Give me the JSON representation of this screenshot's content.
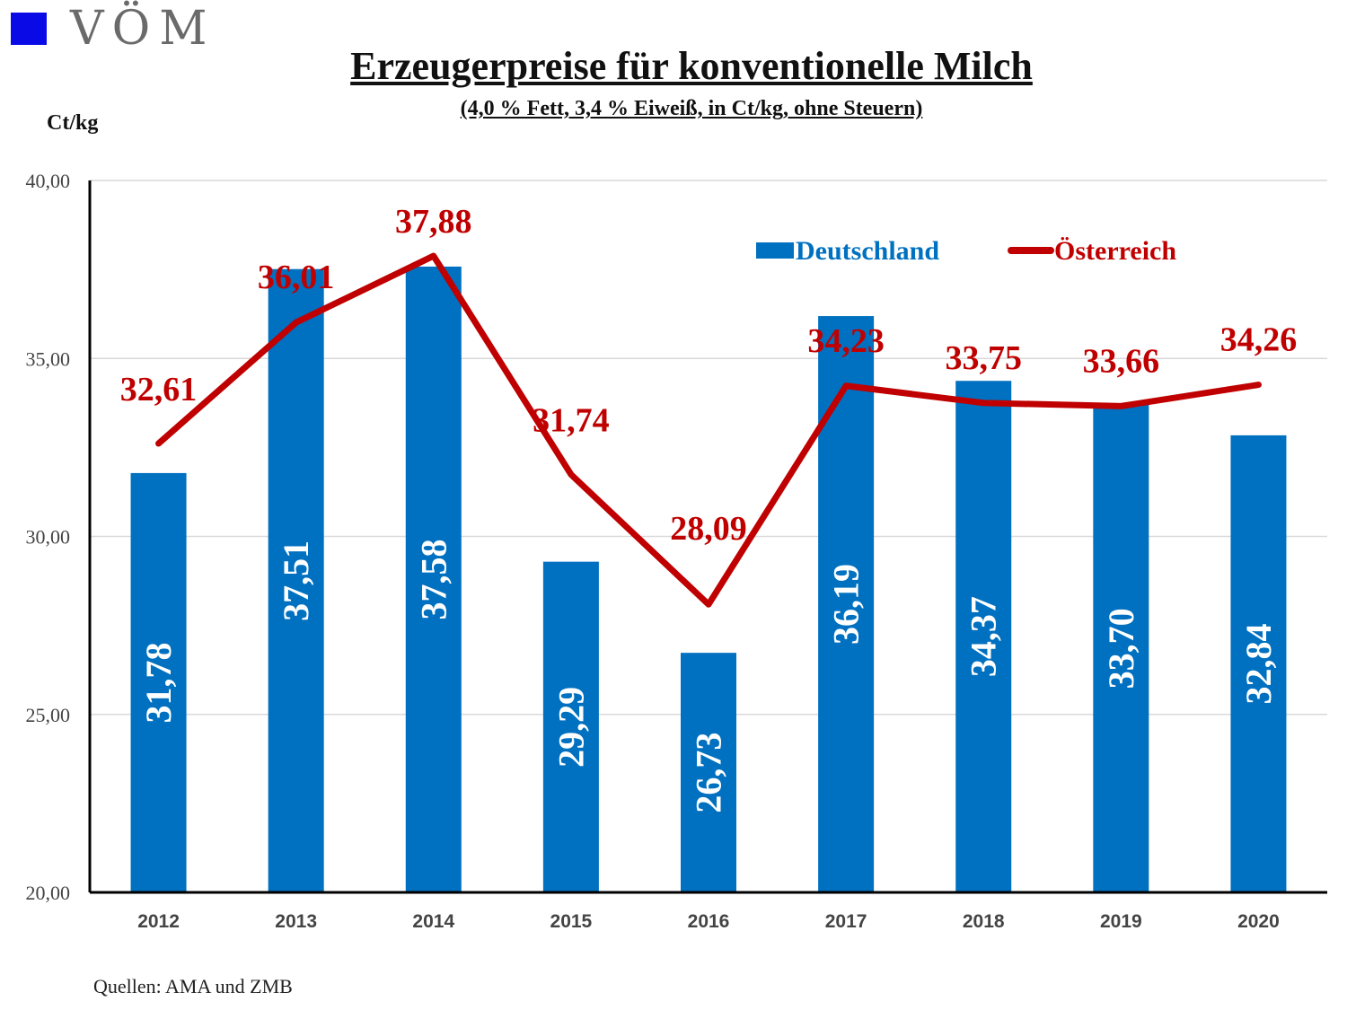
{
  "logo": {
    "text": "VÖM",
    "color": "#0a0ae6"
  },
  "header": {
    "title": "Erzeugerpreise für konventionelle Milch",
    "subtitle": "(4,0 % Fett, 3,4 % Eiweiß, in Ct/kg, ohne Steuern)",
    "unit": "Ct/kg"
  },
  "footer": {
    "source": "Quellen: AMA und ZMB"
  },
  "chart_data": {
    "type": "bar",
    "categories": [
      "2012",
      "2013",
      "2014",
      "2015",
      "2016",
      "2017",
      "2018",
      "2019",
      "2020"
    ],
    "series": [
      {
        "name": "Deutschland",
        "kind": "bar",
        "color": "#0070c0",
        "values": [
          31.78,
          37.51,
          37.58,
          29.29,
          26.73,
          36.19,
          34.37,
          33.7,
          32.84
        ],
        "labels": [
          "31,78",
          "37,51",
          "37,58",
          "29,29",
          "26,73",
          "36,19",
          "34,37",
          "33,70",
          "32,84"
        ]
      },
      {
        "name": "Österreich",
        "kind": "line",
        "color": "#c00000",
        "values": [
          32.61,
          36.01,
          37.88,
          31.74,
          28.09,
          34.23,
          33.75,
          33.66,
          34.26
        ],
        "labels": [
          "32,61",
          "36,01",
          "37,88",
          "31,74",
          "28,09",
          "34,23",
          "33,75",
          "33,66",
          "34,26"
        ]
      }
    ],
    "ylim": [
      20,
      40
    ],
    "yticks": [
      20,
      25,
      30,
      35,
      40
    ],
    "ytick_labels": [
      "20,00",
      "25,00",
      "30,00",
      "35,00",
      "40,00"
    ],
    "grid": true,
    "legend": "top-right"
  }
}
